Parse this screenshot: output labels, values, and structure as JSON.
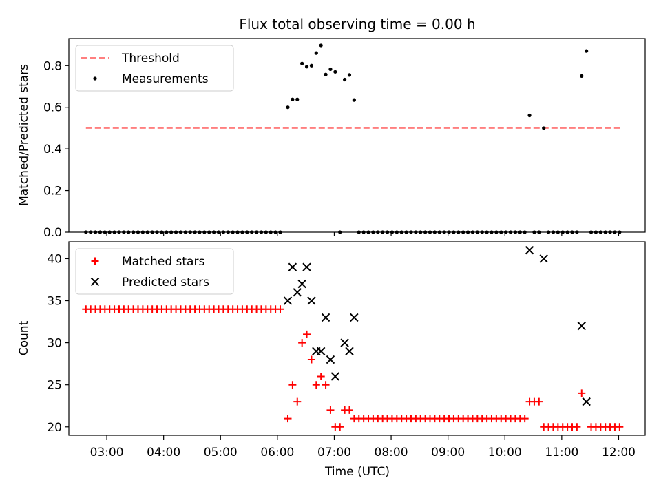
{
  "chart_data": {
    "title": "Flux total observing time = 0.00 h",
    "xlabel": "Time (UTC)",
    "x_unit": "hours UTC",
    "x_ticks": [
      "03:00",
      "04:00",
      "05:00",
      "06:00",
      "07:00",
      "08:00",
      "09:00",
      "10:00",
      "11:00",
      "12:00"
    ],
    "x_tick_values": [
      3,
      4,
      5,
      6,
      7,
      8,
      9,
      10,
      11,
      12
    ],
    "xlim": [
      "02:20",
      "12:28"
    ],
    "panels": [
      {
        "type": "scatter",
        "ylabel": "Matched/Predicted stars",
        "ylim": [
          0,
          0.93
        ],
        "y_ticks": [
          "0.0",
          "0.2",
          "0.4",
          "0.6",
          "0.8"
        ],
        "y_tick_values": [
          0,
          0.2,
          0.4,
          0.6,
          0.8
        ],
        "legend_position": "upper-left",
        "series": [
          {
            "name": "Threshold",
            "kind": "dashed-line",
            "color": "#ff7f7f",
            "points": [
              [
                "02:38",
                0.5
              ],
              [
                "12:02",
                0.5
              ]
            ]
          },
          {
            "name": "Measurements",
            "kind": "dot",
            "color": "#000000",
            "points": [
              [
                "06:11",
                0.6
              ],
              [
                "06:16",
                0.638
              ],
              [
                "06:21",
                0.638
              ],
              [
                "06:26",
                0.81
              ],
              [
                "06:31",
                0.795
              ],
              [
                "06:36",
                0.8
              ],
              [
                "06:41",
                0.86
              ],
              [
                "06:46",
                0.897
              ],
              [
                "06:51",
                0.757
              ],
              [
                "06:56",
                0.783
              ],
              [
                "07:01",
                0.77
              ],
              [
                "07:11",
                0.733
              ],
              [
                "07:16",
                0.755
              ],
              [
                "07:21",
                0.635
              ],
              [
                "07:06",
                0.0
              ],
              [
                "10:26",
                0.561
              ],
              [
                "10:41",
                0.5
              ],
              [
                "11:21",
                0.75
              ],
              [
                "11:26",
                0.87
              ]
            ],
            "zero_runs": [
              [
                "02:38",
                "06:06"
              ],
              [
                "07:26",
                "10:21"
              ],
              [
                "10:31",
                "10:36"
              ],
              [
                "10:46",
                "11:16"
              ],
              [
                "11:31",
                "12:02"
              ]
            ]
          }
        ]
      },
      {
        "type": "scatter",
        "ylabel": "Count",
        "ylim": [
          19,
          42
        ],
        "y_ticks": [
          "20",
          "25",
          "30",
          "35",
          "40"
        ],
        "y_tick_values": [
          20,
          25,
          30,
          35,
          40
        ],
        "legend_position": "upper-left",
        "series": [
          {
            "name": "Matched stars",
            "kind": "plus",
            "color": "#ff0000",
            "points": [
              [
                "06:11",
                21
              ],
              [
                "06:16",
                25
              ],
              [
                "06:21",
                23
              ],
              [
                "06:26",
                30
              ],
              [
                "06:31",
                31
              ],
              [
                "06:36",
                28
              ],
              [
                "06:41",
                25
              ],
              [
                "06:46",
                26
              ],
              [
                "06:51",
                25
              ],
              [
                "06:56",
                22
              ],
              [
                "07:01",
                20
              ],
              [
                "07:06",
                20
              ],
              [
                "07:11",
                22
              ],
              [
                "07:16",
                22
              ],
              [
                "10:26",
                23
              ],
              [
                "10:31",
                23
              ],
              [
                "10:36",
                23
              ],
              [
                "11:21",
                24
              ]
            ],
            "runs": [
              [
                "02:38",
                "06:06",
                34
              ],
              [
                "07:21",
                "10:21",
                21
              ],
              [
                "10:41",
                "11:16",
                20
              ],
              [
                "11:31",
                "12:02",
                20
              ]
            ]
          },
          {
            "name": "Predicted stars",
            "kind": "cross",
            "color": "#000000",
            "points": [
              [
                "06:11",
                35
              ],
              [
                "06:16",
                39
              ],
              [
                "06:21",
                36
              ],
              [
                "06:26",
                37
              ],
              [
                "06:31",
                39
              ],
              [
                "06:36",
                35
              ],
              [
                "06:41",
                29
              ],
              [
                "06:46",
                29
              ],
              [
                "06:51",
                33
              ],
              [
                "06:56",
                28
              ],
              [
                "07:01",
                26
              ],
              [
                "07:11",
                30
              ],
              [
                "07:16",
                29
              ],
              [
                "07:21",
                33
              ],
              [
                "10:26",
                41
              ],
              [
                "10:41",
                40
              ],
              [
                "11:21",
                32
              ],
              [
                "11:26",
                23
              ]
            ]
          }
        ]
      }
    ]
  }
}
